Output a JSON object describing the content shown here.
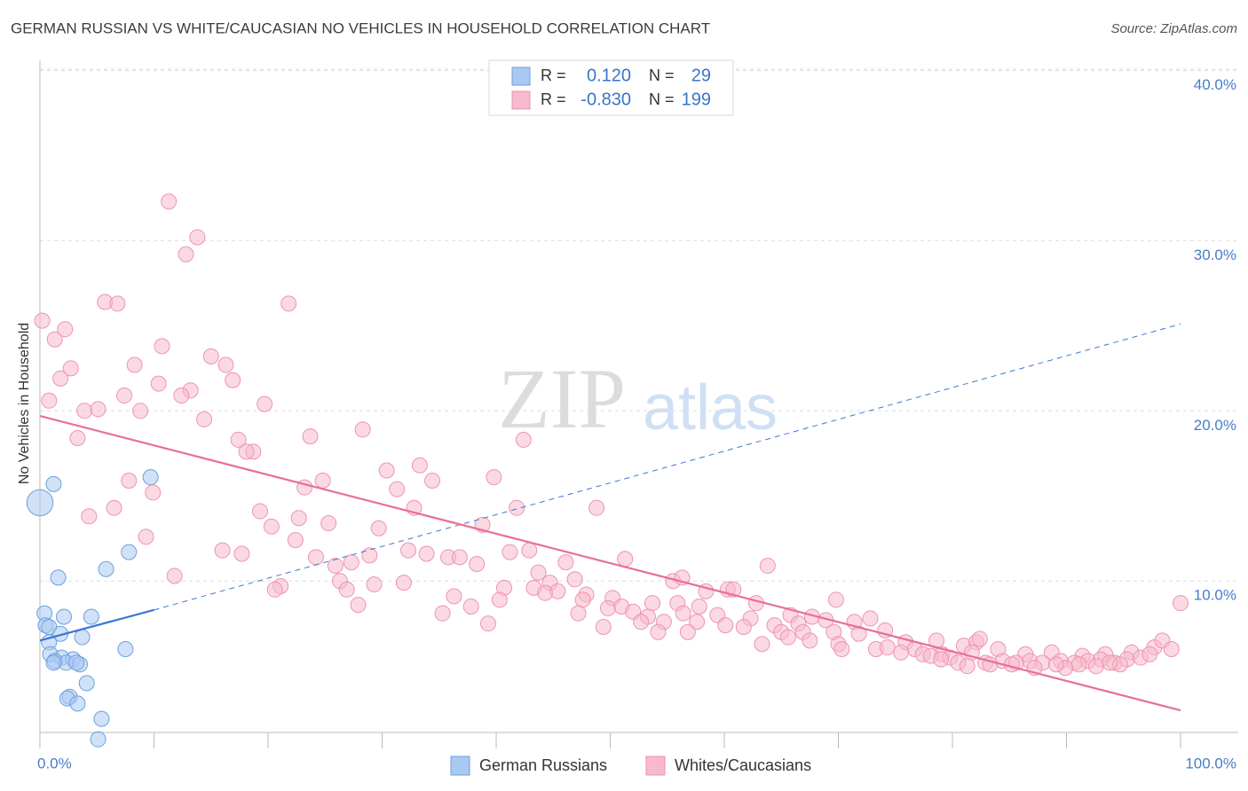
{
  "chart_data": {
    "type": "scatter",
    "title": "GERMAN RUSSIAN VS WHITE/CAUCASIAN NO VEHICLES IN HOUSEHOLD CORRELATION CHART",
    "source": "Source: ZipAtlas.com",
    "watermark": [
      "ZIP",
      "atlas"
    ],
    "ylabel": "No Vehicles in Household",
    "xlim": [
      0,
      100
    ],
    "ylim": [
      1.1,
      40.6
    ],
    "xticks": [
      {
        "value": 0,
        "label": "0.0%"
      },
      {
        "value": 100,
        "label": "100.0%"
      }
    ],
    "xminor_ticks": [
      10,
      20,
      30,
      40,
      50,
      60,
      70,
      80,
      90
    ],
    "yticks": [
      {
        "value": 10,
        "label": "10.0%"
      },
      {
        "value": 20,
        "label": "20.0%"
      },
      {
        "value": 30,
        "label": "30.0%"
      },
      {
        "value": 40,
        "label": "40.0%"
      }
    ],
    "grid": true,
    "legend_stats": [
      {
        "r_label": "R =",
        "r": "0.120",
        "n_label": "N =",
        "n": "29"
      },
      {
        "r_label": "R =",
        "r": "-0.830",
        "n_label": "N =",
        "n": "199"
      }
    ],
    "series": [
      {
        "name": "German Russians",
        "color": "#a9c8f2",
        "stroke": "#6f9fe0",
        "trend_color": "#3a78d4",
        "x": [
          0,
          1.2,
          9.7,
          7.8,
          5.8,
          1.6,
          0.4,
          2.1,
          4.5,
          0.5,
          0.8,
          1.8,
          3.7,
          0.8,
          7.5,
          0.9,
          1.9,
          2.9,
          1.3,
          2.3,
          1.2,
          3.5,
          4.1,
          2.6,
          2.4,
          3.3,
          5.4,
          5.1,
          3.2
        ],
        "values": [
          14.6,
          15.7,
          16.1,
          11.7,
          10.7,
          10.2,
          8.1,
          7.9,
          7.9,
          7.4,
          7.3,
          6.9,
          6.7,
          6.4,
          6.0,
          5.7,
          5.5,
          5.4,
          5.3,
          5.2,
          5.2,
          5.1,
          4.0,
          3.2,
          3.1,
          2.8,
          1.9,
          0.7,
          5.2
        ],
        "sizes": [
          3,
          1,
          1,
          1,
          1,
          1,
          1,
          1,
          1,
          1,
          1,
          1,
          1,
          1,
          1,
          1,
          1,
          1,
          1,
          1,
          1,
          1,
          1,
          1,
          1,
          1,
          1,
          1,
          1
        ],
        "trend": {
          "x": [
            0,
            10,
            100
          ],
          "values": [
            6.5,
            8.3,
            25.1
          ]
        }
      },
      {
        "name": "Whites/Caucasians",
        "color": "#f7b9cc",
        "stroke": "#ee94b1",
        "trend_color": "#e8709a",
        "x": [
          0.2,
          1.3,
          2.2,
          0.8,
          2.7,
          1.8,
          3.9,
          5.1,
          3.3,
          11.3,
          13.8,
          12.8,
          5.7,
          6.8,
          21.8,
          10.7,
          8.3,
          15.0,
          16.3,
          10.4,
          16.9,
          7.4,
          13.2,
          12.4,
          8.8,
          19.7,
          14.4,
          17.4,
          18.7,
          18.1,
          23.7,
          28.3,
          42.4,
          30.4,
          33.3,
          39.8,
          7.8,
          9.9,
          24.8,
          23.2,
          31.3,
          34.4,
          6.5,
          4.3,
          19.3,
          22.7,
          32.8,
          41.8,
          48.8,
          20.3,
          25.3,
          38.8,
          29.7,
          9.3,
          22.4,
          16.0,
          17.7,
          32.3,
          24.2,
          33.9,
          35.8,
          41.2,
          42.9,
          25.9,
          27.3,
          28.9,
          36.8,
          38.3,
          46.1,
          51.3,
          63.8,
          11.8,
          21.1,
          20.6,
          26.3,
          29.3,
          31.9,
          43.7,
          44.7,
          26.9,
          40.7,
          43.3,
          44.3,
          45.4,
          46.9,
          47.9,
          50.2,
          55.5,
          56.3,
          58.4,
          60.3,
          60.8,
          27.9,
          36.3,
          37.8,
          40.3,
          47.6,
          49.8,
          51.0,
          53.7,
          55.9,
          57.8,
          62.8,
          69.8,
          35.3,
          47.2,
          52.0,
          53.3,
          56.4,
          59.4,
          62.3,
          65.8,
          67.7,
          39.3,
          49.4,
          52.7,
          54.7,
          57.6,
          60.1,
          61.7,
          64.4,
          66.5,
          68.9,
          71.4,
          72.8,
          54.2,
          56.8,
          65.0,
          66.9,
          69.6,
          71.8,
          74.1,
          63.3,
          65.6,
          67.5,
          70.0,
          75.9,
          70.3,
          73.3,
          74.3,
          76.7,
          78.6,
          81.0,
          82.1,
          82.4,
          75.5,
          77.4,
          79.1,
          78.1,
          79.8,
          81.7,
          84.0,
          86.4,
          88.7,
          91.4,
          93.4,
          95.7,
          97.7,
          98.4,
          99.2,
          100,
          80.5,
          82.9,
          84.4,
          85.6,
          86.8,
          87.9,
          89.5,
          90.7,
          91.9,
          93.0,
          94.2,
          95.3,
          96.5,
          97.3,
          83.3,
          87.2,
          89.9,
          92.6,
          94.7,
          81.3,
          85.2,
          89.1,
          91.1,
          93.8,
          79.0
        ],
        "values": [
          25.3,
          24.2,
          24.8,
          20.6,
          22.5,
          21.9,
          20.0,
          20.1,
          18.4,
          32.3,
          30.2,
          29.2,
          26.4,
          26.3,
          26.3,
          23.8,
          22.7,
          23.2,
          22.7,
          21.6,
          21.8,
          20.9,
          21.2,
          20.9,
          20.0,
          20.4,
          19.5,
          18.3,
          17.6,
          17.6,
          18.5,
          18.9,
          18.3,
          16.5,
          16.8,
          16.1,
          15.9,
          15.2,
          15.9,
          15.5,
          15.4,
          15.9,
          14.3,
          13.8,
          14.1,
          13.7,
          14.3,
          14.3,
          14.3,
          13.2,
          13.4,
          13.3,
          13.1,
          12.6,
          12.4,
          11.8,
          11.6,
          11.8,
          11.4,
          11.6,
          11.4,
          11.7,
          11.8,
          10.9,
          11.1,
          11.5,
          11.4,
          11.0,
          11.1,
          11.3,
          10.9,
          10.3,
          9.7,
          9.5,
          10.0,
          9.8,
          9.9,
          10.5,
          9.9,
          9.5,
          9.6,
          9.6,
          9.3,
          9.4,
          10.1,
          9.2,
          9.0,
          10.0,
          10.2,
          9.4,
          9.5,
          9.5,
          8.6,
          9.1,
          8.5,
          8.9,
          8.9,
          8.4,
          8.5,
          8.7,
          8.7,
          8.5,
          8.7,
          8.9,
          8.1,
          8.1,
          8.2,
          7.9,
          8.1,
          8.0,
          7.8,
          8.0,
          7.9,
          7.5,
          7.3,
          7.6,
          7.6,
          7.6,
          7.4,
          7.3,
          7.4,
          7.5,
          7.7,
          7.6,
          7.8,
          7.0,
          7.0,
          7.0,
          7.0,
          7.0,
          6.9,
          7.1,
          6.3,
          6.7,
          6.5,
          6.3,
          6.4,
          6.0,
          6.0,
          6.1,
          6.0,
          6.5,
          6.2,
          6.4,
          6.6,
          5.8,
          5.7,
          5.7,
          5.6,
          5.5,
          5.8,
          6.0,
          5.7,
          5.8,
          5.6,
          5.7,
          5.8,
          6.1,
          6.5,
          6.0,
          8.7,
          5.2,
          5.2,
          5.3,
          5.2,
          5.3,
          5.2,
          5.3,
          5.2,
          5.3,
          5.4,
          5.2,
          5.4,
          5.5,
          5.7,
          5.1,
          4.9,
          4.9,
          5.0,
          5.1,
          5.0,
          5.1,
          5.1,
          5.1,
          5.2,
          5.4
        ],
        "trend": {
          "x": [
            0,
            100
          ],
          "values": [
            19.7,
            2.4
          ]
        }
      }
    ]
  }
}
